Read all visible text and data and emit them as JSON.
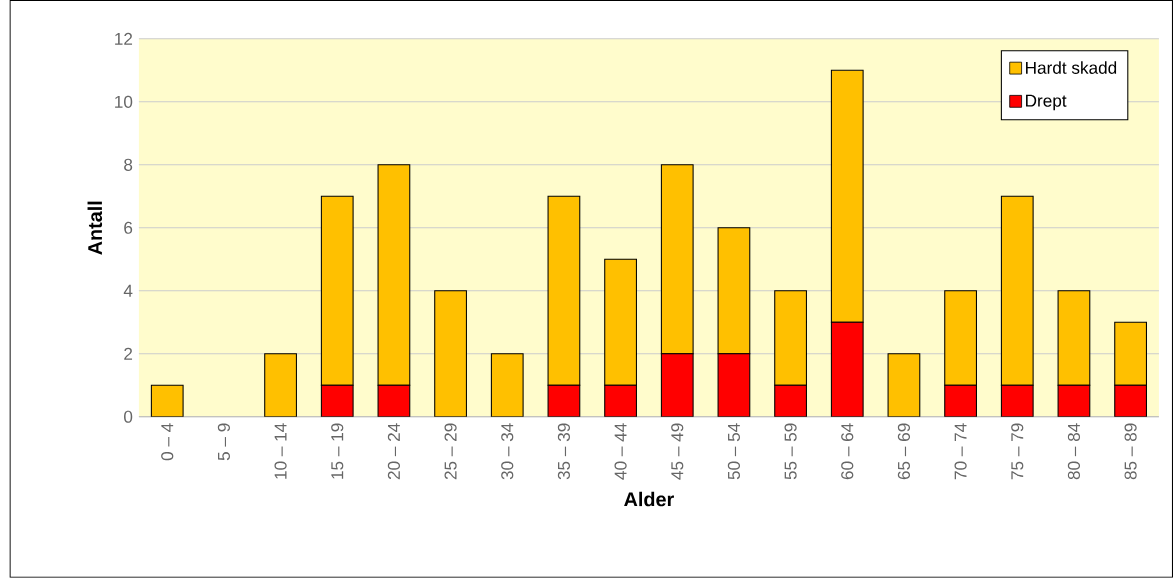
{
  "chart_data": {
    "type": "bar",
    "stacked": true,
    "xlabel": "Alder",
    "ylabel": "Antall",
    "categories": [
      "0 – 4",
      "5 – 9",
      "10 – 14",
      "15 – 19",
      "20 – 24",
      "25 – 29",
      "30 – 34",
      "35 – 39",
      "40 – 44",
      "45 – 49",
      "50 – 54",
      "55 – 59",
      "60 – 64",
      "65 – 69",
      "70 – 74",
      "75 – 79",
      "80 – 84",
      "85 – 89"
    ],
    "series": [
      {
        "name": "Drept",
        "color": "#ff0000",
        "values": [
          0,
          0,
          0,
          1,
          1,
          0,
          0,
          1,
          1,
          2,
          2,
          1,
          3,
          0,
          1,
          1,
          1,
          1
        ]
      },
      {
        "name": "Hardt skadd",
        "color": "#ffc000",
        "values": [
          1,
          0,
          2,
          6,
          7,
          4,
          2,
          6,
          4,
          6,
          4,
          3,
          8,
          2,
          3,
          6,
          3,
          2
        ]
      }
    ],
    "ylim": [
      0,
      12
    ],
    "yticks": [
      0,
      2,
      4,
      6,
      8,
      10,
      12
    ],
    "grid": "y",
    "legend": "top right"
  }
}
